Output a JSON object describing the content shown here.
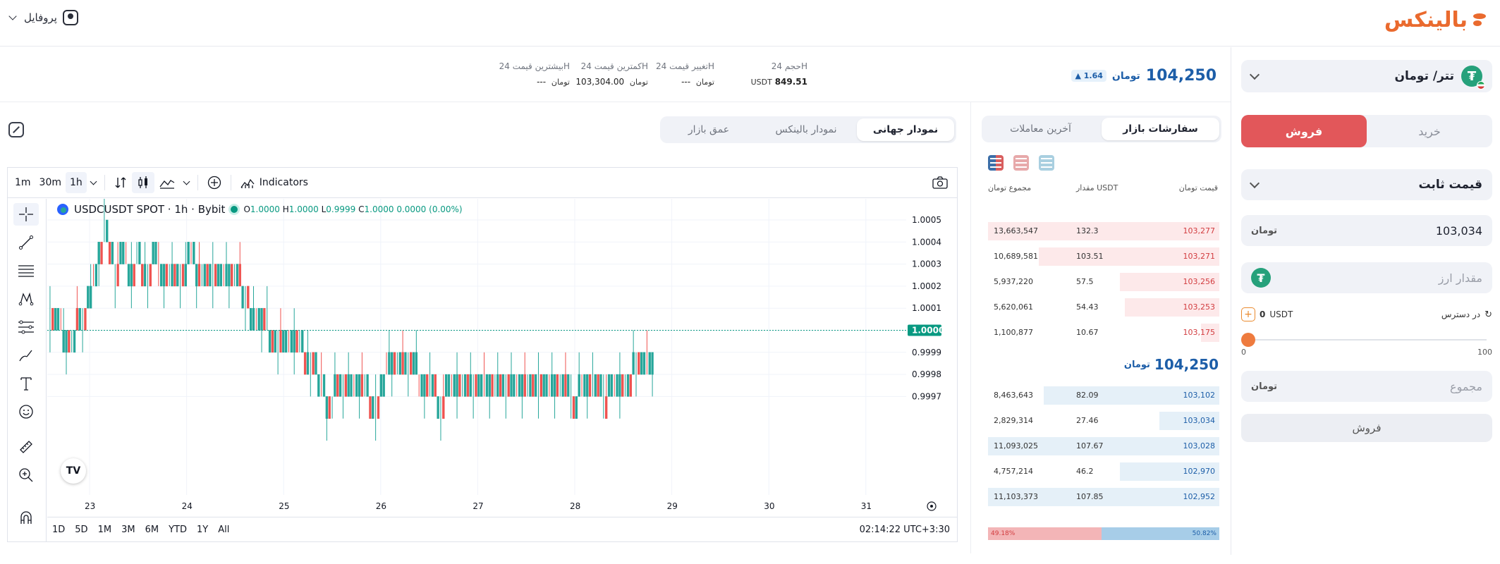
{
  "brand": {
    "logo_text": "بالینکس",
    "accent": "#ea6a2e"
  },
  "header": {
    "profile_label": "پروفایل"
  },
  "market": {
    "pair_label": "تتر/ تومان",
    "price": "104,250",
    "price_unit": "تومان",
    "change_badge": "1.64",
    "change_direction": "up",
    "stats": {
      "volume_label": "حجم 24H",
      "volume_value": "849.51",
      "volume_unit": "USDT",
      "change_label": "تغییر قیمت 24H",
      "change_value": "---",
      "change_unit": "تومان",
      "low_label": "کمترین قیمت 24H",
      "low_value": "103,304.00",
      "low_unit": "تومان",
      "high_label": "بیشترین قیمت 24H",
      "high_value": "---",
      "high_unit": "تومان"
    }
  },
  "trade": {
    "buy_label": "خرید",
    "sell_label": "فروش",
    "active_side": "sell",
    "order_type": "قیمت ثابت",
    "price_value": "103,034",
    "price_unit": "تومان",
    "amount_placeholder": "مقدار ارز",
    "available_label": "در دسترس",
    "available_value": "0",
    "available_unit": "USDT",
    "slider_min": "0",
    "slider_max": "100",
    "slider_value": 0,
    "total_placeholder": "مجموع",
    "total_unit": "تومان",
    "submit_label": "فروش"
  },
  "orderbook": {
    "tabs": [
      "سفارشات بازار",
      "آخرین معاملات"
    ],
    "active_tab": 0,
    "col_price": "قیمت تومان",
    "col_amount": "مقدار USDT",
    "col_total": "مجموع تومان",
    "asks": [
      {
        "price": "103,277",
        "amount": "132.3",
        "total": "13,663,547",
        "depth": 1.0
      },
      {
        "price": "103,271",
        "amount": "103.51",
        "total": "10,689,581",
        "depth": 0.78
      },
      {
        "price": "103,256",
        "amount": "57.5",
        "total": "5,937,220",
        "depth": 0.43
      },
      {
        "price": "103,253",
        "amount": "54.43",
        "total": "5,620,061",
        "depth": 0.41
      },
      {
        "price": "103,175",
        "amount": "10.67",
        "total": "1,100,877",
        "depth": 0.08
      }
    ],
    "mid_price": "104,250",
    "mid_unit": "تومان",
    "bids": [
      {
        "price": "103,102",
        "amount": "82.09",
        "total": "8,463,643",
        "depth": 0.76
      },
      {
        "price": "103,034",
        "amount": "27.46",
        "total": "2,829,314",
        "depth": 0.26
      },
      {
        "price": "103,028",
        "amount": "107.67",
        "total": "11,093,025",
        "depth": 1.0
      },
      {
        "price": "102,970",
        "amount": "46.2",
        "total": "4,757,214",
        "depth": 0.43
      },
      {
        "price": "102,952",
        "amount": "107.85",
        "total": "11,103,373",
        "depth": 1.0
      }
    ],
    "sell_ratio": "49.18%",
    "buy_ratio": "50.82%",
    "sell_ratio_value": 49.18,
    "buy_ratio_value": 50.82,
    "ask_color": "#d23c3f",
    "bid_color": "#1d5ea8"
  },
  "chart_tabs": [
    "نمودار جهانی",
    "نمودار بالینکس",
    "عمق بازار"
  ],
  "chart_active_tab": 0,
  "tv": {
    "intervals": [
      "1m",
      "30m",
      "1h"
    ],
    "active_interval": "1h",
    "indicators_label": "Indicators",
    "symbol": "USDCUSDT SPOT · 1h · Bybit",
    "ohlc": {
      "o_label": "O",
      "o": "1.0000",
      "h_label": "H",
      "h": "1.0000",
      "l_label": "L",
      "l": "0.9999",
      "c_label": "C",
      "c": "1.0000",
      "chg": "0.0000 (0.00%)"
    },
    "ranges": [
      "1D",
      "5D",
      "1M",
      "3M",
      "6M",
      "YTD",
      "1Y",
      "All"
    ],
    "clock": "02:14:22 UTC+3:30",
    "last_price_label": "1.0000"
  },
  "chart_data": {
    "type": "candlestick",
    "y_ticks": [
      "1.0005",
      "1.0004",
      "1.0003",
      "1.0002",
      "1.0001",
      "1.0000",
      "0.9999",
      "0.9998",
      "0.9997"
    ],
    "ylim": [
      0.99965,
      1.00055
    ],
    "x_ticks": [
      "23",
      "24",
      "25",
      "26",
      "27",
      "28",
      "29",
      "30",
      "31"
    ],
    "last_price": 1.0,
    "up_color": "#26a69a",
    "down_color": "#ef5350"
  }
}
